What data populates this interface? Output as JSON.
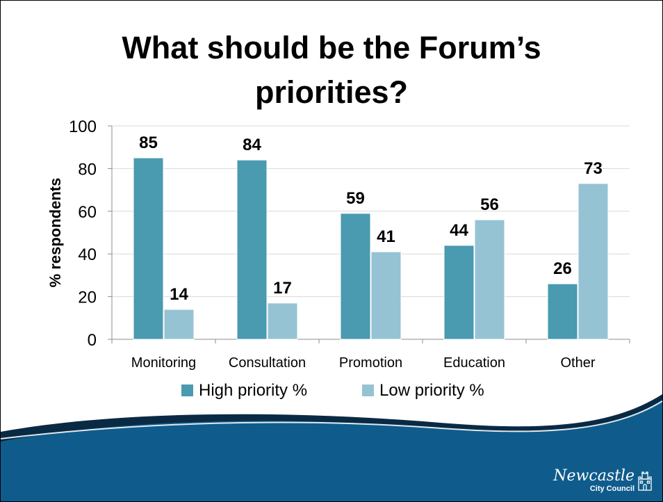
{
  "slide": {
    "title_line1": "What should be the Forum’s",
    "title_line2": "priorities?"
  },
  "logo": {
    "name": "Newcastle",
    "subtitle": "City Council",
    "icon": "castle-icon"
  },
  "colors": {
    "high": "#4A9AB0",
    "low": "#95C3D4",
    "footer_blue": "#0F5C8C",
    "footer_dark": "#0A2A44"
  },
  "chart_data": {
    "type": "bar",
    "categories": [
      "Monitoring",
      "Consultation",
      "Promotion",
      "Education",
      "Other"
    ],
    "series": [
      {
        "name": "High priority %",
        "values": [
          85,
          84,
          59,
          44,
          26
        ]
      },
      {
        "name": "Low priority %",
        "values": [
          14,
          17,
          41,
          56,
          73
        ]
      }
    ],
    "ylabel": "% respondents",
    "ylim": [
      0,
      100
    ],
    "yticks": [
      0,
      20,
      40,
      60,
      80,
      100
    ],
    "grid": true,
    "legend": "bottom"
  }
}
